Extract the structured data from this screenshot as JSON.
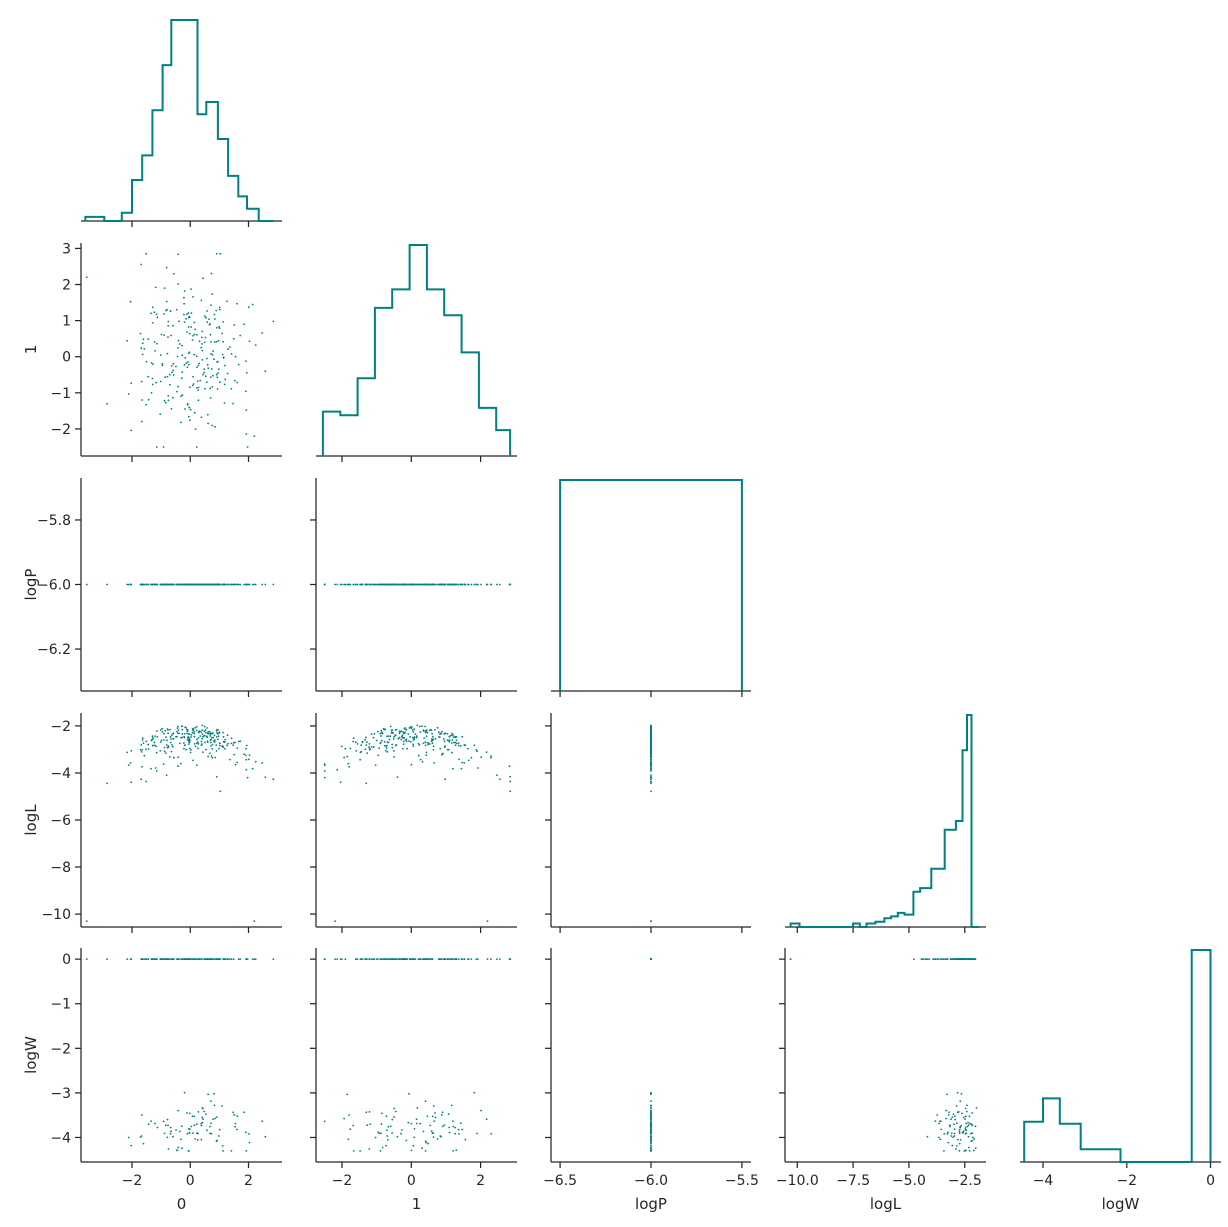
{
  "chart_data": {
    "type": "pairplot",
    "variables": [
      "0",
      "1",
      "logP",
      "logL",
      "logW"
    ],
    "corner": true,
    "color": "#008080",
    "axis_color": "#262626",
    "diag_type": "step-histogram",
    "offdiag_type": "scatter",
    "axis_ranges": {
      "0": [
        -3.75,
        3.15
      ],
      "1": [
        -2.75,
        3.05
      ],
      "logP": [
        -6.55,
        -5.45
      ],
      "logL": [
        -10.55,
        -1.55
      ],
      "logW": [
        -4.55,
        0.25
      ]
    },
    "ylims": {
      "1": [
        -2.75,
        3.15
      ],
      "logP": [
        -6.33,
        -5.67
      ],
      "logL": [
        -10.55,
        -1.45
      ],
      "logW": [
        -4.55,
        0.25
      ]
    },
    "xticks": {
      "0": [
        "-2",
        "0",
        "2"
      ],
      "1": [
        "-2",
        "0",
        "2"
      ],
      "logP": [
        "-6.5",
        "-6.0",
        "-5.5"
      ],
      "logL": [
        "-10.0",
        "-7.5",
        "-5.0",
        "-2.5"
      ],
      "logW": [
        "-4",
        "-2",
        "0"
      ]
    },
    "yticks": {
      "1": [
        "-2",
        "-1",
        "0",
        "1",
        "2",
        "3"
      ],
      "logP": [
        "-6.2",
        "-6.0",
        "-5.8"
      ],
      "logL": [
        "-10",
        "-8",
        "-6",
        "-4",
        "-2"
      ],
      "logW": [
        "-4",
        "-3",
        "-2",
        "-1",
        "0"
      ]
    },
    "histograms": {
      "0": {
        "bins": [
          -3.6,
          -2.95,
          -2.65,
          -2.35,
          -2.0,
          -1.65,
          -1.3,
          -0.95,
          -0.65,
          -0.25,
          0.25,
          0.55,
          0.95,
          1.3,
          1.65,
          1.95,
          2.35,
          2.85
        ],
        "counts": [
          1,
          0,
          0,
          2,
          10,
          16,
          27,
          38,
          49,
          49,
          26,
          29,
          20,
          11,
          6,
          3,
          0
        ]
      },
      "1": {
        "bins": [
          -2.55,
          -2.05,
          -1.55,
          -1.05,
          -0.55,
          -0.05,
          0.45,
          0.95,
          1.45,
          1.95,
          2.45,
          2.85
        ],
        "counts": [
          12,
          11,
          21,
          40,
          45,
          57,
          45,
          38,
          28,
          13,
          7
        ]
      },
      "logP": {
        "bins": [
          -6.5,
          -5.5
        ],
        "counts": [
          1
        ]
      },
      "logL": {
        "bins": [
          -10.3,
          -9.9,
          -7.5,
          -7.2,
          -6.9,
          -6.5,
          -6.1,
          -5.8,
          -5.5,
          -5.2,
          -4.8,
          -4.5,
          -4.0,
          -3.4,
          -2.9,
          -2.6,
          -2.4,
          -2.2,
          -1.85
        ],
        "counts": [
          2,
          0,
          2,
          0,
          2,
          3,
          5,
          6,
          8,
          7,
          20,
          22,
          33,
          55,
          60,
          100,
          120,
          0
        ]
      },
      "logW": {
        "bins": [
          -4.45,
          -4.0,
          -3.6,
          -3.1,
          -2.6,
          -2.15,
          -0.45,
          0.0
        ],
        "counts": [
          19,
          30,
          18,
          6,
          6,
          0,
          100
        ]
      }
    }
  }
}
